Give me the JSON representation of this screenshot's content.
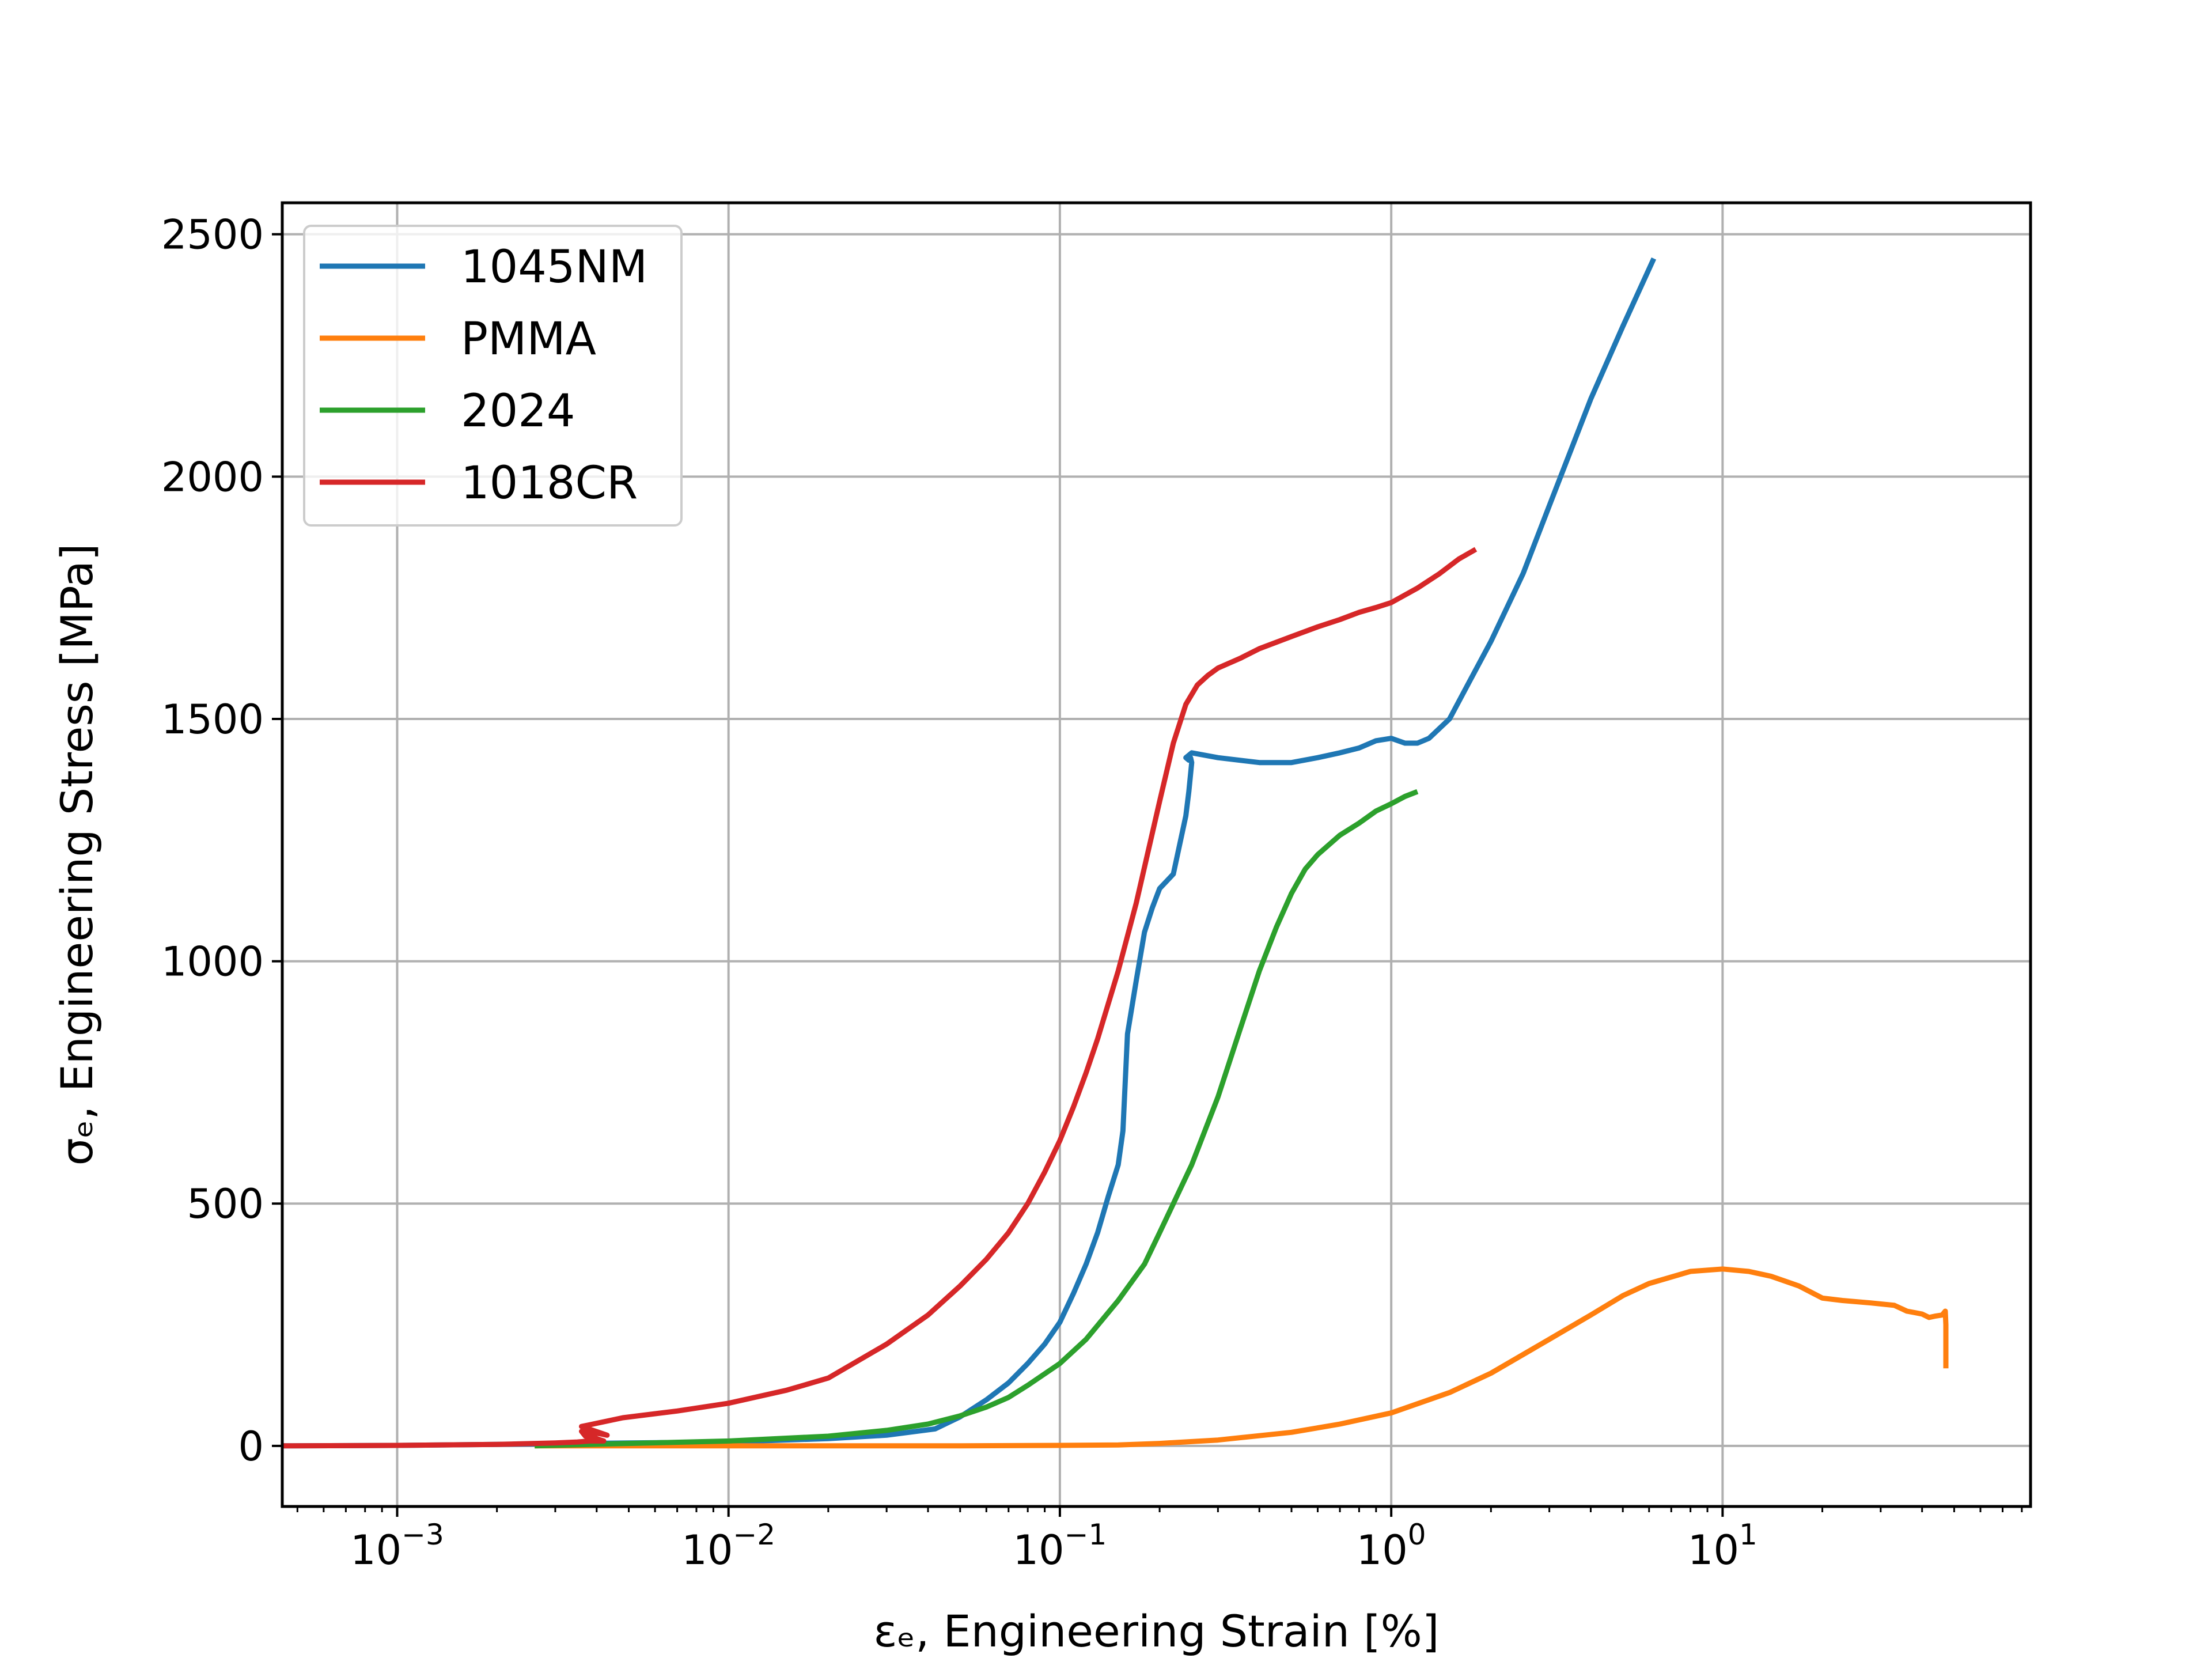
{
  "chart_data": {
    "type": "line",
    "title": "",
    "xlabel": "εₑ, Engineering Strain  [%]",
    "ylabel": "σₑ, Engineering Stress  [MPa]",
    "xscale": "log",
    "xlim": [
      0.00045,
      85
    ],
    "ylim": [
      -125,
      2565
    ],
    "grid": true,
    "legend_position": "top-left",
    "x_ticks": [
      {
        "value": 0.001,
        "base": "10",
        "exp": "−3"
      },
      {
        "value": 0.01,
        "base": "10",
        "exp": "−2"
      },
      {
        "value": 0.1,
        "base": "10",
        "exp": "−1"
      },
      {
        "value": 1,
        "base": "10",
        "exp": "0"
      },
      {
        "value": 10,
        "base": "10",
        "exp": "1"
      }
    ],
    "y_ticks": [
      {
        "value": 0,
        "label": "0"
      },
      {
        "value": 500,
        "label": "500"
      },
      {
        "value": 1000,
        "label": "1000"
      },
      {
        "value": 1500,
        "label": "1500"
      },
      {
        "value": 2000,
        "label": "2000"
      },
      {
        "value": 2500,
        "label": "2500"
      }
    ],
    "series": [
      {
        "name": "1045NM",
        "color": "#1f77b4",
        "x": [
          0.00045,
          0.001,
          0.002,
          0.005,
          0.01,
          0.02,
          0.03,
          0.042,
          0.05,
          0.06,
          0.07,
          0.08,
          0.09,
          0.1,
          0.11,
          0.12,
          0.13,
          0.14,
          0.15,
          0.155,
          0.16,
          0.17,
          0.18,
          0.19,
          0.2,
          0.22,
          0.24,
          0.245,
          0.25,
          0.248,
          0.245,
          0.24,
          0.25,
          0.3,
          0.4,
          0.5,
          0.6,
          0.7,
          0.8,
          0.9,
          1.0,
          1.1,
          1.2,
          1.3,
          1.5,
          1.7,
          2.0,
          2.5,
          3.0,
          4.0,
          5.0,
          6.2
        ],
        "y": [
          0,
          1,
          3,
          6,
          8,
          15,
          22,
          35,
          60,
          95,
          130,
          170,
          210,
          255,
          315,
          375,
          440,
          515,
          580,
          650,
          850,
          960,
          1060,
          1110,
          1150,
          1180,
          1300,
          1350,
          1410,
          1420,
          1415,
          1420,
          1430,
          1420,
          1410,
          1410,
          1420,
          1430,
          1440,
          1455,
          1460,
          1450,
          1450,
          1460,
          1500,
          1570,
          1660,
          1800,
          1940,
          2160,
          2310,
          2450
        ]
      },
      {
        "name": "PMMA",
        "color": "#ff7f0e",
        "x": [
          0.0026,
          0.01,
          0.05,
          0.1,
          0.15,
          0.2,
          0.3,
          0.5,
          0.7,
          1.0,
          1.5,
          2.0,
          3.0,
          4.0,
          5.0,
          6.0,
          8.0,
          10.0,
          12.0,
          14.0,
          17.0,
          20.0,
          23.0,
          28.0,
          33.0,
          36.0,
          38.0,
          40.0,
          42.0,
          44.0,
          46.0,
          47.0,
          47.2,
          47.2
        ],
        "y": [
          0,
          0,
          0,
          1,
          2,
          5,
          12,
          28,
          45,
          68,
          110,
          150,
          220,
          270,
          310,
          335,
          360,
          365,
          360,
          350,
          330,
          305,
          300,
          295,
          290,
          278,
          275,
          272,
          265,
          268,
          270,
          278,
          250,
          160
        ]
      },
      {
        "name": "2024",
        "color": "#2ca02c",
        "x": [
          0.0026,
          0.005,
          0.01,
          0.02,
          0.03,
          0.04,
          0.05,
          0.06,
          0.07,
          0.08,
          0.1,
          0.12,
          0.15,
          0.18,
          0.2,
          0.25,
          0.3,
          0.35,
          0.4,
          0.45,
          0.5,
          0.55,
          0.6,
          0.7,
          0.8,
          0.9,
          1.0,
          1.1,
          1.2
        ],
        "y": [
          0,
          5,
          10,
          20,
          32,
          45,
          62,
          80,
          100,
          125,
          170,
          220,
          300,
          375,
          440,
          580,
          720,
          860,
          980,
          1070,
          1140,
          1190,
          1220,
          1260,
          1285,
          1310,
          1325,
          1340,
          1350
        ]
      },
      {
        "name": "1018CR",
        "color": "#d62728",
        "x": [
          0.00045,
          0.001,
          0.002,
          0.003,
          0.0035,
          0.0038,
          0.0042,
          0.004,
          0.0037,
          0.0036,
          0.0041,
          0.0043,
          0.0036,
          0.0048,
          0.007,
          0.01,
          0.015,
          0.02,
          0.03,
          0.04,
          0.05,
          0.06,
          0.07,
          0.08,
          0.09,
          0.1,
          0.11,
          0.12,
          0.13,
          0.15,
          0.17,
          0.2,
          0.22,
          0.24,
          0.26,
          0.28,
          0.3,
          0.35,
          0.4,
          0.5,
          0.6,
          0.7,
          0.8,
          0.9,
          1.0,
          1.2,
          1.4,
          1.6,
          1.8
        ],
        "y": [
          0,
          1,
          3,
          6,
          8,
          10,
          10,
          15,
          20,
          30,
          25,
          22,
          40,
          58,
          72,
          88,
          115,
          140,
          210,
          270,
          330,
          385,
          440,
          500,
          565,
          630,
          700,
          770,
          840,
          980,
          1120,
          1330,
          1450,
          1530,
          1570,
          1590,
          1605,
          1625,
          1645,
          1670,
          1690,
          1705,
          1720,
          1730,
          1740,
          1770,
          1800,
          1830,
          1850
        ]
      }
    ]
  }
}
